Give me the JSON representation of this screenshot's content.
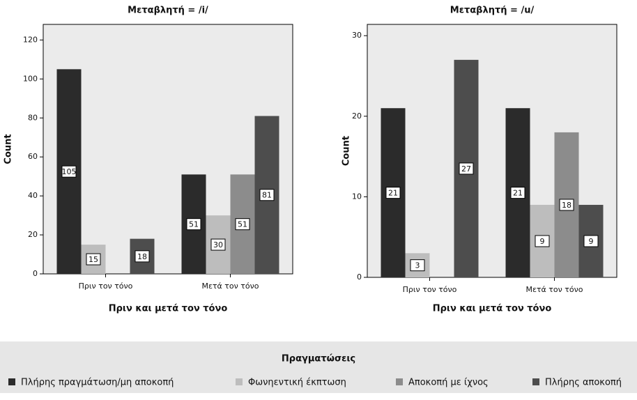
{
  "chart_data": [
    {
      "type": "bar",
      "title": "Μεταβλητή = /i/",
      "x_label": "Πριν και μετά τον τόνο",
      "y_label": "Count",
      "categories": [
        "Πριν τον τόνο",
        "Μετά τον τόνο"
      ],
      "series": [
        {
          "name": "Πλήρης πραγμάτωση/μη αποκοπή",
          "color": "#2b2b2b",
          "values": [
            105,
            51
          ]
        },
        {
          "name": "Φωνηεντική έκπτωση",
          "color": "#bdbdbd",
          "values": [
            15,
            30
          ]
        },
        {
          "name": "Αποκοπή με ίχνος",
          "color": "#8c8c8c",
          "values": [
            null,
            51
          ]
        },
        {
          "name": "Πλήρης αποκοπή",
          "color": "#4d4d4d",
          "values": [
            18,
            81
          ]
        }
      ],
      "ylim": [
        0,
        128
      ],
      "yticks": [
        0,
        20,
        40,
        60,
        80,
        100,
        120
      ]
    },
    {
      "type": "bar",
      "title": "Μεταβλητή = /u/",
      "x_label": "Πριν και μετά τον τόνο",
      "y_label": "Count",
      "categories": [
        "Πριν τον τόνο",
        "Μετά τον τόνο"
      ],
      "series": [
        {
          "name": "Πλήρης πραγμάτωση/μη αποκοπή",
          "color": "#2b2b2b",
          "values": [
            21,
            21
          ]
        },
        {
          "name": "Φωνηεντική έκπτωση",
          "color": "#bdbdbd",
          "values": [
            3,
            9
          ]
        },
        {
          "name": "Αποκοπή με ίχνος",
          "color": "#8c8c8c",
          "values": [
            null,
            18
          ]
        },
        {
          "name": "Πλήρης αποκοπή",
          "color": "#4d4d4d",
          "values": [
            27,
            9
          ]
        }
      ],
      "ylim": [
        0,
        31.4
      ],
      "yticks": [
        0,
        10,
        20,
        30
      ]
    }
  ],
  "legend": {
    "title": "Πραγματώσεις"
  }
}
